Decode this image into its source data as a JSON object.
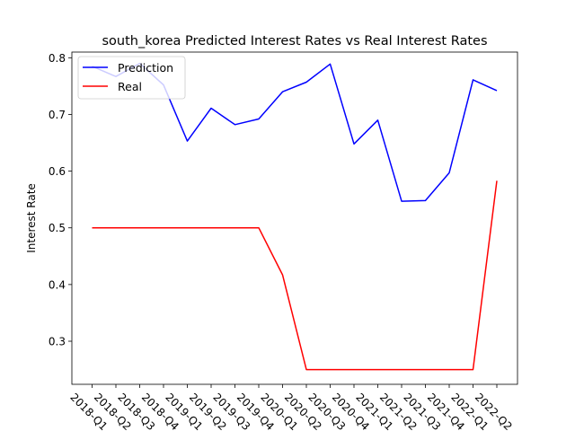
{
  "chart_data": {
    "type": "line",
    "title": "south_korea Predicted Interest Rates vs Real Interest Rates",
    "xlabel": "",
    "ylabel": "Interest Rate",
    "x": [
      "2018-Q1",
      "2018-Q2",
      "2018-Q3",
      "2018-Q4",
      "2019-Q1",
      "2019-Q2",
      "2019-Q3",
      "2019-Q4",
      "2020-Q1",
      "2020-Q2",
      "2020-Q3",
      "2020-Q4",
      "2021-Q1",
      "2021-Q2",
      "2021-Q3",
      "2021-Q4",
      "2022-Q1",
      "2022-Q2"
    ],
    "ylim": [
      0.224,
      0.81
    ],
    "yticks": [
      0.3,
      0.4,
      0.5,
      0.6,
      0.7,
      0.8
    ],
    "ytick_labels": [
      "0.3",
      "0.4",
      "0.5",
      "0.6",
      "0.7",
      "0.8"
    ],
    "grid": false,
    "legend": "top-left",
    "series": [
      {
        "name": "Prediction",
        "color": "#0000ff",
        "values": [
          0.785,
          0.767,
          0.79,
          0.752,
          0.653,
          0.711,
          0.682,
          0.692,
          0.74,
          0.757,
          0.789,
          0.648,
          0.69,
          0.547,
          0.548,
          0.597,
          0.761,
          0.742
        ]
      },
      {
        "name": "Real",
        "color": "#ff0000",
        "values": [
          0.5,
          0.5,
          0.5,
          0.5,
          0.5,
          0.5,
          0.5,
          0.5,
          0.417,
          0.25,
          0.25,
          0.25,
          0.25,
          0.25,
          0.25,
          0.25,
          0.25,
          0.583
        ]
      }
    ]
  }
}
